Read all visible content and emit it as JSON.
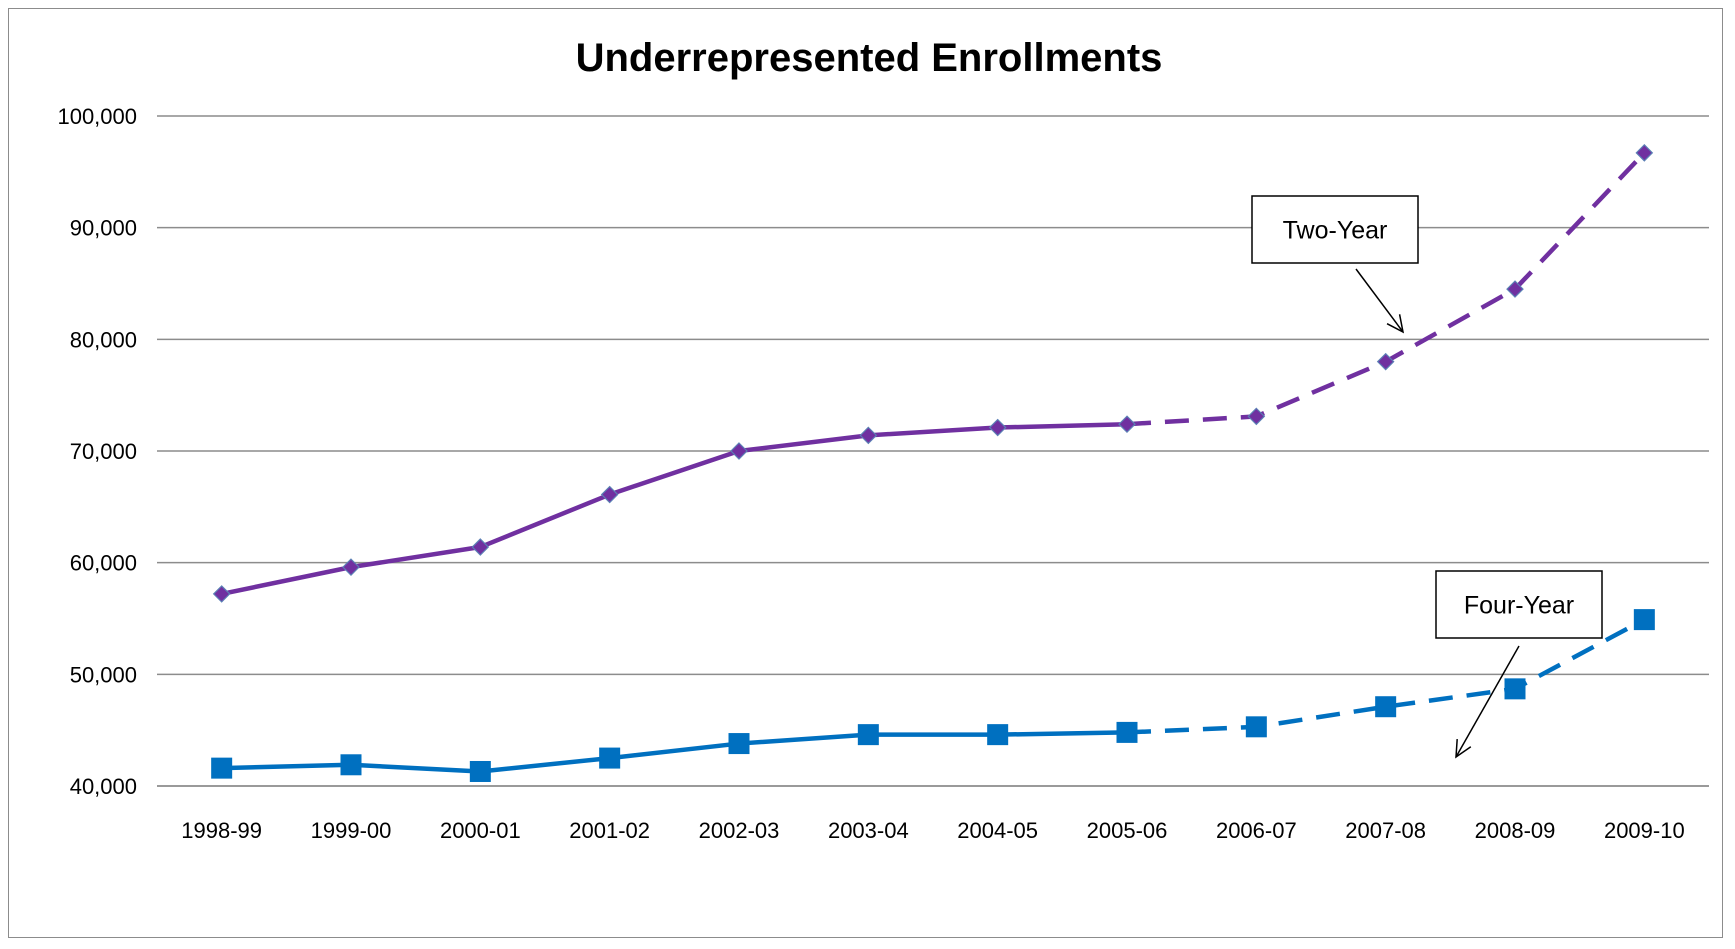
{
  "chart_data": {
    "type": "line",
    "title": "Underrepresented Enrollments",
    "xlabel": "",
    "ylabel": "",
    "categories": [
      "1998-99",
      "1999-00",
      "2000-01",
      "2001-02",
      "2002-03",
      "2003-04",
      "2004-05",
      "2005-06",
      "2006-07",
      "2007-08",
      "2008-09",
      "2009-10"
    ],
    "ylim": [
      40000,
      100000
    ],
    "yticks": [
      40000,
      50000,
      60000,
      70000,
      80000,
      90000,
      100000
    ],
    "ytick_labels": [
      "40,000",
      "50,000",
      "60,000",
      "70,000",
      "80,000",
      "90,000",
      "100,000"
    ],
    "grid": true,
    "legend": "none",
    "projection_start_category": "2005-06",
    "series": [
      {
        "name": "Two-Year",
        "color": "#7030A0",
        "marker": "diamond",
        "values": [
          57200,
          59600,
          61400,
          66100,
          70000,
          71400,
          72100,
          72400,
          73100,
          78000,
          84500,
          96700
        ]
      },
      {
        "name": "Four-Year",
        "color": "#0070C0",
        "marker": "square",
        "values": [
          41600,
          41900,
          41300,
          42500,
          43800,
          44600,
          44600,
          44800,
          45300,
          47100,
          48700,
          54900
        ]
      }
    ],
    "annotations": [
      {
        "text": "Two-Year",
        "series": "Two-Year"
      },
      {
        "text": "Four-Year",
        "series": "Four-Year"
      }
    ]
  }
}
